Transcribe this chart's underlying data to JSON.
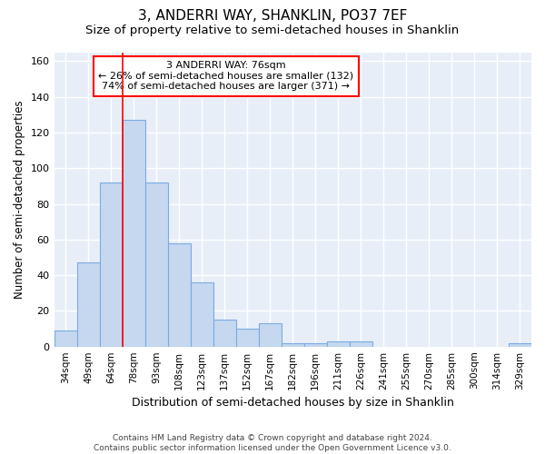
{
  "title": "3, ANDERRI WAY, SHANKLIN, PO37 7EF",
  "subtitle": "Size of property relative to semi-detached houses in Shanklin",
  "xlabel": "Distribution of semi-detached houses by size in Shanklin",
  "ylabel": "Number of semi-detached properties",
  "categories": [
    "34sqm",
    "49sqm",
    "64sqm",
    "78sqm",
    "93sqm",
    "108sqm",
    "123sqm",
    "137sqm",
    "152sqm",
    "167sqm",
    "182sqm",
    "196sqm",
    "211sqm",
    "226sqm",
    "241sqm",
    "255sqm",
    "270sqm",
    "285sqm",
    "300sqm",
    "314sqm",
    "329sqm"
  ],
  "values": [
    9,
    47,
    92,
    127,
    92,
    58,
    36,
    15,
    10,
    13,
    2,
    2,
    3,
    3,
    0,
    0,
    0,
    0,
    0,
    0,
    2
  ],
  "bar_color": "#c5d8f0",
  "bar_edge_color": "#7aabe0",
  "bg_color": "#e8eef8",
  "grid_color": "#ffffff",
  "red_line_label": "3 ANDERRI WAY: 76sqm",
  "annotation_smaller": "← 26% of semi-detached houses are smaller (132)",
  "annotation_larger": "74% of semi-detached houses are larger (371) →",
  "ylim": [
    0,
    165
  ],
  "yticks": [
    0,
    20,
    40,
    60,
    80,
    100,
    120,
    140,
    160
  ],
  "footer1": "Contains HM Land Registry data © Crown copyright and database right 2024.",
  "footer2": "Contains public sector information licensed under the Open Government Licence v3.0.",
  "title_fontsize": 11,
  "subtitle_fontsize": 9.5
}
